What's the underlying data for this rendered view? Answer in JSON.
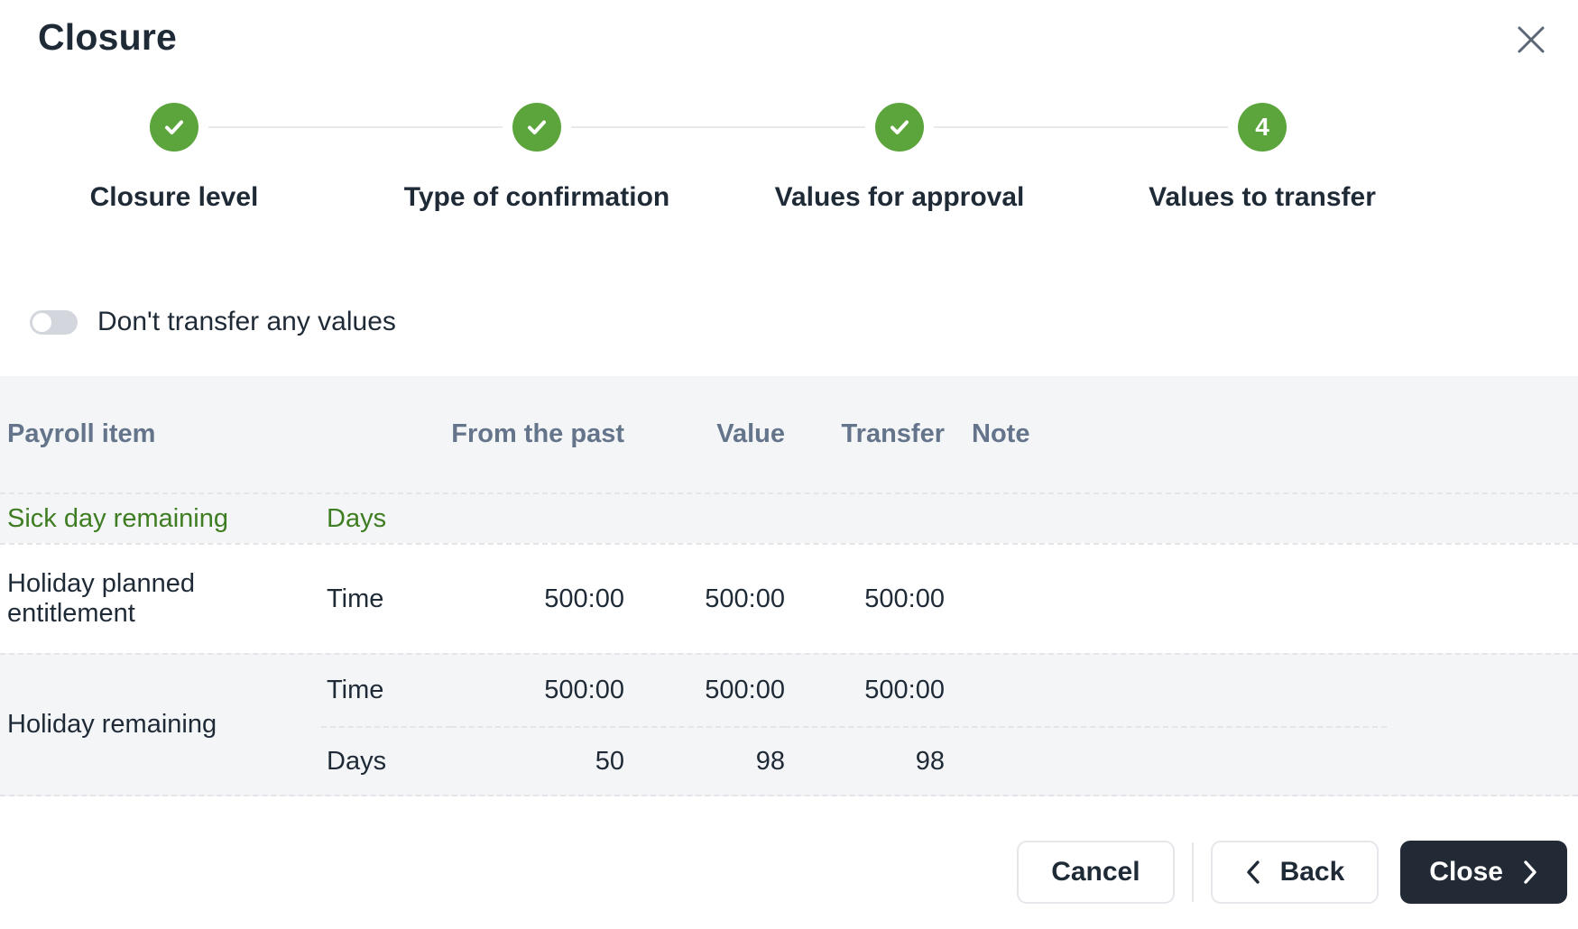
{
  "modal": {
    "title": "Closure"
  },
  "icons": {
    "close": "x-icon",
    "step_done": "check-icon",
    "back": "chevron-left-icon",
    "forward": "chevron-right-icon"
  },
  "stepper": {
    "steps": [
      {
        "label": "Closure level",
        "state": "completed"
      },
      {
        "label": "Type of confirmation",
        "state": "completed"
      },
      {
        "label": "Values for approval",
        "state": "completed"
      },
      {
        "label": "Values to transfer",
        "state": "current",
        "number": "4"
      }
    ]
  },
  "toggle": {
    "label": "Don't transfer any values",
    "state": "off"
  },
  "table": {
    "header": {
      "item": "Payroll item",
      "unit": "",
      "past": "From the past",
      "value": "Value",
      "transfer": "Transfer",
      "note": "Note"
    },
    "rows": [
      {
        "item": "Sick day remaining",
        "shaded": true,
        "green": true,
        "lines": [
          {
            "unit": "Days",
            "past": "",
            "value": "",
            "transfer": "",
            "note": ""
          }
        ]
      },
      {
        "item": "Holiday planned entitlement",
        "shaded": false,
        "green": false,
        "lines": [
          {
            "unit": "Time",
            "past": "500:00",
            "value": "500:00",
            "transfer": "500:00",
            "note": ""
          }
        ]
      },
      {
        "item": "Holiday remaining",
        "shaded": true,
        "green": false,
        "lines": [
          {
            "unit": "Time",
            "past": "500:00",
            "value": "500:00",
            "transfer": "500:00",
            "note": ""
          },
          {
            "unit": "Days",
            "past": "50",
            "value": "98",
            "transfer": "98",
            "note": ""
          }
        ]
      }
    ]
  },
  "footer": {
    "cancel_label": "Cancel",
    "back_label": "Back",
    "close_label": "Close"
  },
  "colors": {
    "step_green": "#5ca53d",
    "row_green_text": "#3e7d21",
    "header_text": "#64748b",
    "dark_text": "#1f2a37",
    "shaded_bg": "#f4f5f7",
    "dark_button_bg": "#222a36",
    "dashed_border": "#e3e5e9"
  }
}
